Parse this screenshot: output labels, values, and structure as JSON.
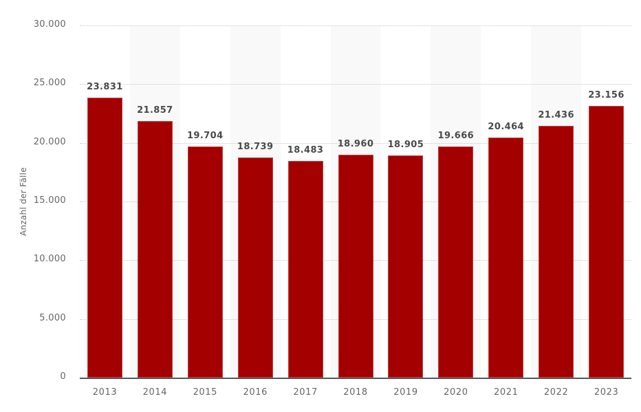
{
  "chart_data": {
    "type": "bar",
    "title": "",
    "xlabel": "",
    "ylabel": "Anzahl der Fälle",
    "ylim": [
      0,
      30000
    ],
    "yticks": [
      0,
      5000,
      10000,
      15000,
      20000,
      25000,
      30000
    ],
    "ytick_labels": [
      "0",
      "5.000",
      "10.000",
      "15.000",
      "20.000",
      "25.000",
      "30.000"
    ],
    "grid": true,
    "legend": "none",
    "categories": [
      "2013",
      "2014",
      "2015",
      "2016",
      "2017",
      "2018",
      "2019",
      "2020",
      "2021",
      "2022",
      "2023"
    ],
    "values": [
      23831,
      21857,
      19704,
      18739,
      18483,
      18960,
      18905,
      19666,
      20464,
      21436,
      23156
    ],
    "value_labels": [
      "23.831",
      "21.857",
      "19.704",
      "18.739",
      "18.483",
      "18.960",
      "18.905",
      "19.666",
      "20.464",
      "21.436",
      "23.156"
    ],
    "bar_color": "#a50000",
    "band_color": "#f9f9f9"
  }
}
